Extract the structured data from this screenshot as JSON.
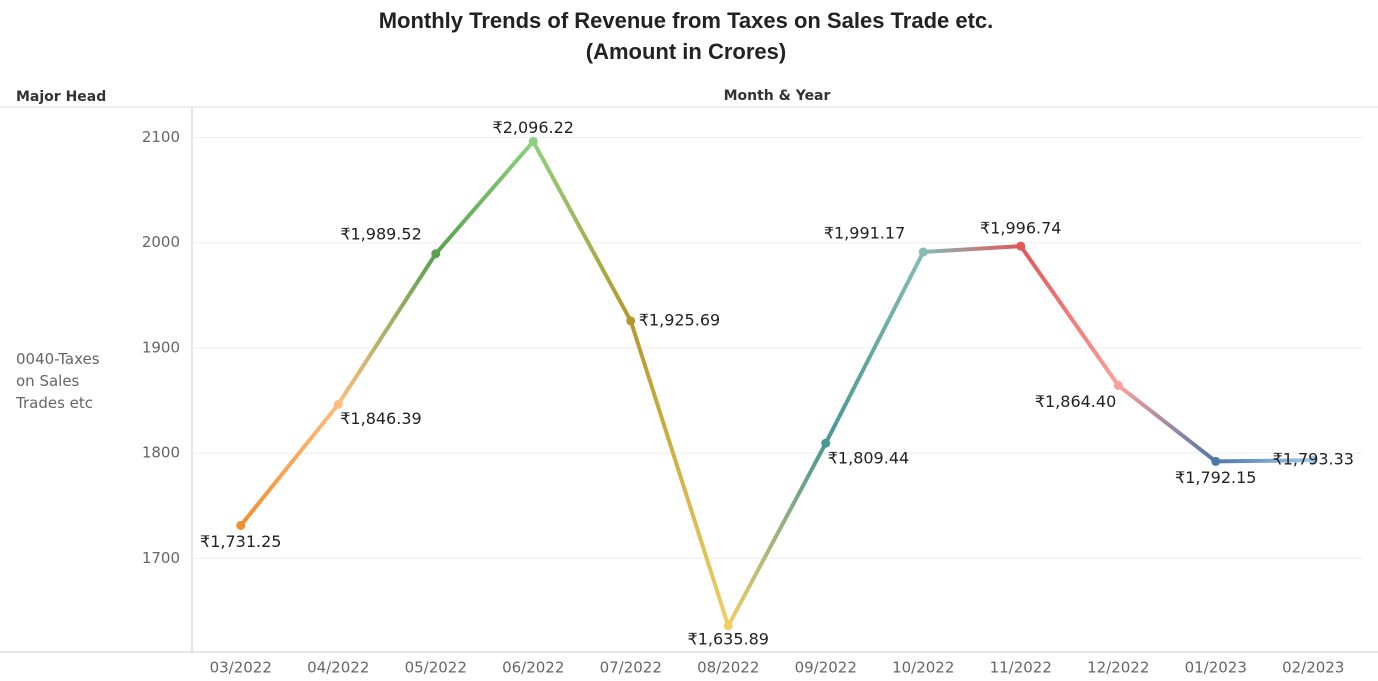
{
  "chart_data": {
    "type": "line",
    "title": "Monthly Trends of Revenue from Taxes on Sales Trade etc.",
    "subtitle": "(Amount in Crores)",
    "row_header": "Major Head",
    "column_header": "Month & Year",
    "row_label": "0040-Taxes on Sales Trades etc",
    "categories": [
      "03/2022",
      "04/2022",
      "05/2022",
      "06/2022",
      "07/2022",
      "08/2022",
      "09/2022",
      "10/2022",
      "11/2022",
      "12/2022",
      "01/2023",
      "02/2023"
    ],
    "values": [
      1731.25,
      1846.39,
      1989.52,
      2096.22,
      1925.69,
      1635.89,
      1809.44,
      1991.17,
      1996.74,
      1864.4,
      1792.15,
      1793.33
    ],
    "value_labels": [
      "₹1,731.25",
      "₹1,846.39",
      "₹1,989.52",
      "₹2,096.22",
      "₹1,925.69",
      "₹1,635.89",
      "₹1,809.44",
      "₹1,991.17",
      "₹1,996.74",
      "₹1,864.40",
      "₹1,792.15",
      "₹1,793.33"
    ],
    "colors": [
      "#f28e2b",
      "#ffbe7d",
      "#59a14f",
      "#8cd17d",
      "#b6992d",
      "#f1ce63",
      "#499894",
      "#86bcb6",
      "#e15759",
      "#ff9d9a",
      "#4e79a7",
      "#a0cbe8"
    ],
    "ylim": [
      1611,
      2129
    ],
    "yticks": [
      1700,
      1800,
      1900,
      2000,
      2100
    ],
    "grid": true
  }
}
